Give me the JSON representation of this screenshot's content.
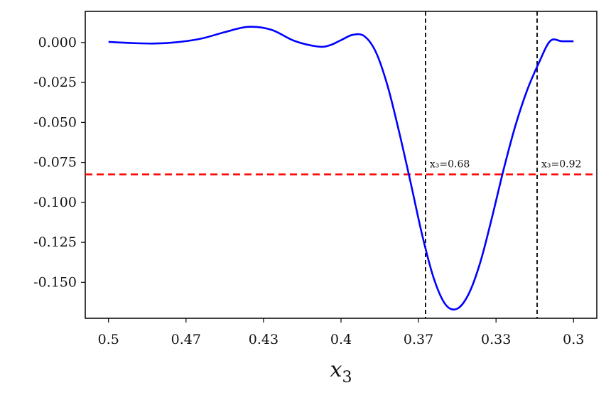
{
  "chart_data": {
    "type": "line",
    "title": "",
    "xlabel": "x",
    "xlabel_sub": "3",
    "ylabel": "",
    "x_ticks": [
      "0.5",
      "0.47",
      "0.43",
      "0.4",
      "0.37",
      "0.33",
      "0.3"
    ],
    "y_ticks": [
      "0.000",
      "-0.025",
      "-0.050",
      "-0.075",
      "-0.100",
      "-0.125",
      "-0.150"
    ],
    "x_tick_values": [
      0,
      1,
      2,
      3,
      4,
      5,
      6
    ],
    "y_tick_values": [
      0.0,
      -0.025,
      -0.05,
      -0.075,
      -0.1,
      -0.125,
      -0.15
    ],
    "xlim": [
      -0.3,
      6.3
    ],
    "ylim": [
      -0.1725,
      0.0195
    ],
    "grid": false,
    "series": [
      {
        "color": "#0000ff",
        "x": [
          0.0,
          0.3,
          0.6,
          0.9,
          1.2,
          1.5,
          1.8,
          2.1,
          2.4,
          2.7,
          2.85,
          3.0,
          3.15,
          3.3,
          3.45,
          3.6,
          3.75,
          3.9,
          4.05,
          4.2,
          4.35,
          4.5,
          4.65,
          4.8,
          4.95,
          5.1,
          5.25,
          5.4,
          5.55,
          5.7,
          5.85,
          6.0
        ],
        "y": [
          0.0004,
          -0.0003,
          -0.0006,
          0.0003,
          0.0025,
          0.0065,
          0.0098,
          0.008,
          0.001,
          -0.0025,
          -0.0018,
          0.0015,
          0.0048,
          0.004,
          -0.006,
          -0.027,
          -0.056,
          -0.088,
          -0.121,
          -0.148,
          -0.164,
          -0.1665,
          -0.157,
          -0.137,
          -0.109,
          -0.079,
          -0.052,
          -0.03,
          -0.013,
          0.001,
          0.0008,
          0.0008
        ]
      }
    ],
    "threshold": {
      "y": -0.0825,
      "color": "#ff0000"
    },
    "verticals": [
      {
        "x": 4.09,
        "label": "x₃=0.68"
      },
      {
        "x": 5.53,
        "label": "x₃=0.92"
      }
    ]
  }
}
